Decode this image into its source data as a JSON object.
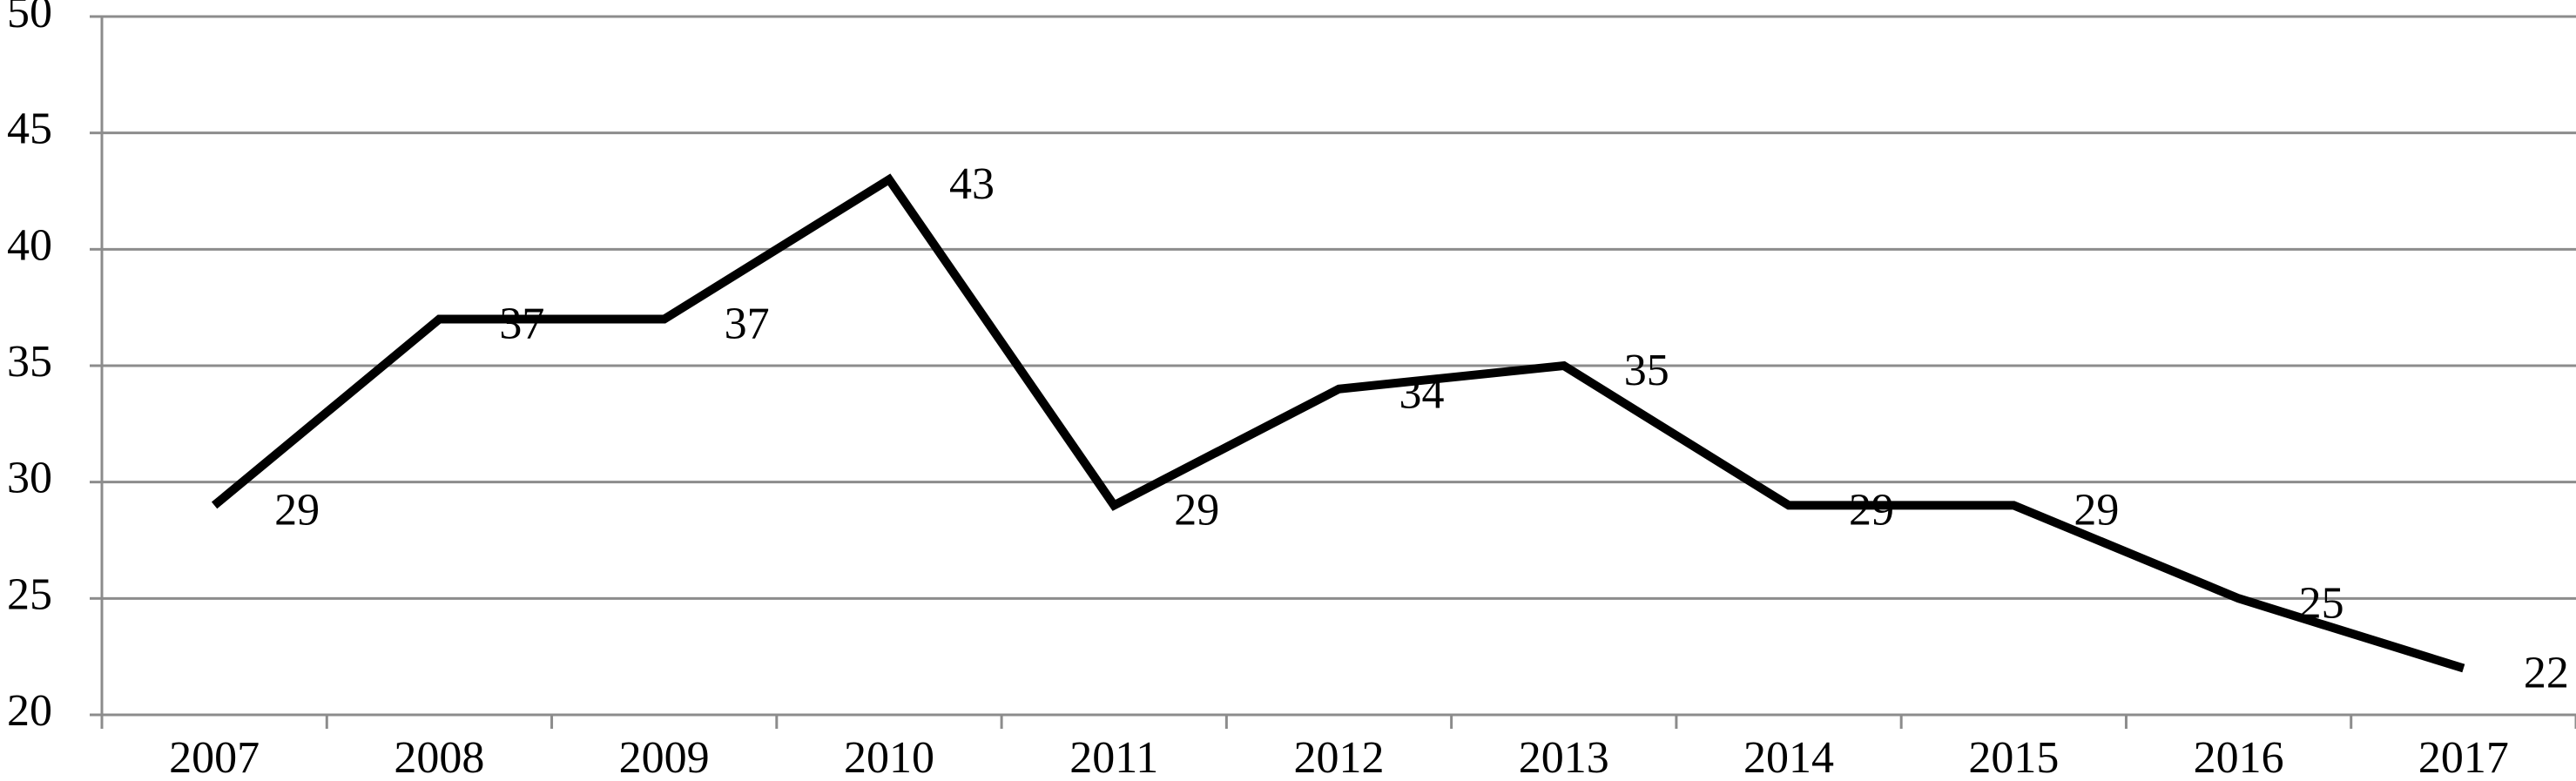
{
  "chart_data": {
    "type": "line",
    "categories": [
      "2007",
      "2008",
      "2009",
      "2010",
      "2011",
      "2012",
      "2013",
      "2014",
      "2015",
      "2016",
      "2017"
    ],
    "values": [
      29,
      37,
      37,
      43,
      29,
      34,
      35,
      29,
      29,
      25,
      22
    ],
    "color": "#000000",
    "ylim": [
      20,
      50
    ],
    "yticks": [
      20,
      25,
      30,
      35,
      40,
      45,
      50
    ],
    "grid": true
  }
}
